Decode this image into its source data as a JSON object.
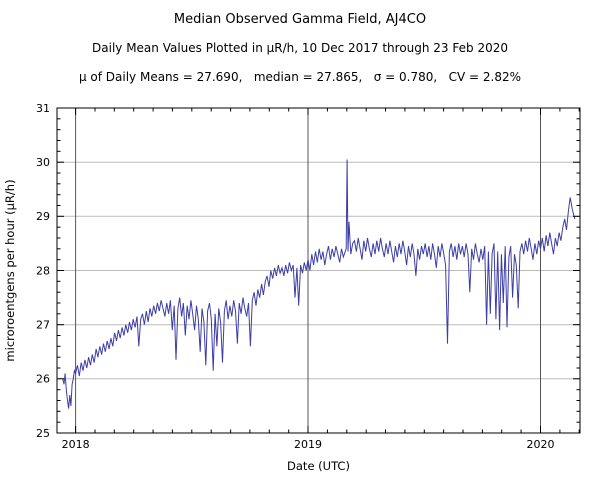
{
  "chart_data": {
    "type": "line",
    "title": "Median Observed Gamma Field, AJ4CO",
    "subtitle": "Daily Mean Values Plotted in μR/h, 10 Dec 2017 through 23 Feb 2020",
    "stats_line": "μ of Daily Means = 27.690,   median = 27.865,   σ = 0.780,   CV = 2.82%",
    "stats": {
      "mean_of_daily_means": 27.69,
      "median": 27.865,
      "sigma": 0.78,
      "cv_percent": 2.82
    },
    "station": "AJ4CO",
    "date_range": {
      "start": "10 Dec 2017",
      "end": "23 Feb 2020"
    },
    "xlabel": "Date (UTC)",
    "ylabel": "microroentgens per hour (μR/h)",
    "xlim": [
      2017.92,
      2020.17
    ],
    "ylim": [
      25,
      31
    ],
    "x_major_ticks": [
      2018,
      2019,
      2020
    ],
    "x_tick_labels": [
      "2018",
      "2019",
      "2020"
    ],
    "y_major_ticks": [
      25,
      26,
      27,
      28,
      29,
      30,
      31
    ],
    "x_minor_step": 0.0833333,
    "y_minor_step": 0.2,
    "grid": {
      "horizontal": true,
      "vertical_years": true,
      "h_color": "#bbbbbb",
      "v_color": "#555555"
    },
    "frame_color": "#000000",
    "line_color": "#3d3da6",
    "series": [
      {
        "name": "daily-mean-gamma",
        "points": [
          [
            2017.945,
            26.0
          ],
          [
            2017.95,
            25.9
          ],
          [
            2017.955,
            26.1
          ],
          [
            2017.96,
            25.8
          ],
          [
            2017.965,
            25.6
          ],
          [
            2017.97,
            25.45
          ],
          [
            2017.975,
            25.7
          ],
          [
            2017.98,
            25.5
          ],
          [
            2017.985,
            25.9
          ],
          [
            2017.99,
            26.0
          ],
          [
            2017.995,
            26.15
          ],
          [
            2018.0,
            26.1
          ],
          [
            2018.008,
            26.25
          ],
          [
            2018.016,
            26.05
          ],
          [
            2018.024,
            26.3
          ],
          [
            2018.032,
            26.15
          ],
          [
            2018.04,
            26.35
          ],
          [
            2018.048,
            26.2
          ],
          [
            2018.056,
            26.4
          ],
          [
            2018.064,
            26.25
          ],
          [
            2018.072,
            26.45
          ],
          [
            2018.08,
            26.3
          ],
          [
            2018.088,
            26.55
          ],
          [
            2018.096,
            26.4
          ],
          [
            2018.104,
            26.6
          ],
          [
            2018.112,
            26.45
          ],
          [
            2018.12,
            26.65
          ],
          [
            2018.128,
            26.5
          ],
          [
            2018.136,
            26.7
          ],
          [
            2018.144,
            26.55
          ],
          [
            2018.152,
            26.75
          ],
          [
            2018.16,
            26.6
          ],
          [
            2018.168,
            26.85
          ],
          [
            2018.176,
            26.7
          ],
          [
            2018.184,
            26.9
          ],
          [
            2018.192,
            26.75
          ],
          [
            2018.2,
            26.95
          ],
          [
            2018.208,
            26.8
          ],
          [
            2018.216,
            27.0
          ],
          [
            2018.224,
            26.85
          ],
          [
            2018.232,
            27.05
          ],
          [
            2018.24,
            26.9
          ],
          [
            2018.248,
            27.1
          ],
          [
            2018.256,
            26.95
          ],
          [
            2018.264,
            27.15
          ],
          [
            2018.272,
            26.6
          ],
          [
            2018.28,
            27.1
          ],
          [
            2018.288,
            27.2
          ],
          [
            2018.296,
            27.0
          ],
          [
            2018.304,
            27.25
          ],
          [
            2018.312,
            27.05
          ],
          [
            2018.32,
            27.3
          ],
          [
            2018.328,
            27.15
          ],
          [
            2018.336,
            27.35
          ],
          [
            2018.344,
            27.2
          ],
          [
            2018.352,
            27.4
          ],
          [
            2018.36,
            27.25
          ],
          [
            2018.368,
            27.45
          ],
          [
            2018.376,
            27.3
          ],
          [
            2018.384,
            27.15
          ],
          [
            2018.392,
            27.4
          ],
          [
            2018.4,
            27.2
          ],
          [
            2018.408,
            27.45
          ],
          [
            2018.416,
            26.9
          ],
          [
            2018.424,
            27.35
          ],
          [
            2018.432,
            26.35
          ],
          [
            2018.44,
            27.3
          ],
          [
            2018.448,
            27.5
          ],
          [
            2018.456,
            27.15
          ],
          [
            2018.464,
            27.4
          ],
          [
            2018.472,
            26.8
          ],
          [
            2018.48,
            27.35
          ],
          [
            2018.488,
            27.1
          ],
          [
            2018.496,
            27.45
          ],
          [
            2018.504,
            27.2
          ],
          [
            2018.512,
            26.9
          ],
          [
            2018.52,
            27.35
          ],
          [
            2018.528,
            27.1
          ],
          [
            2018.536,
            26.5
          ],
          [
            2018.544,
            27.3
          ],
          [
            2018.552,
            27.05
          ],
          [
            2018.56,
            26.25
          ],
          [
            2018.568,
            27.25
          ],
          [
            2018.576,
            27.4
          ],
          [
            2018.584,
            27.1
          ],
          [
            2018.592,
            26.15
          ],
          [
            2018.6,
            27.2
          ],
          [
            2018.608,
            26.6
          ],
          [
            2018.616,
            27.3
          ],
          [
            2018.624,
            27.05
          ],
          [
            2018.632,
            26.3
          ],
          [
            2018.64,
            27.25
          ],
          [
            2018.648,
            27.45
          ],
          [
            2018.656,
            27.1
          ],
          [
            2018.664,
            27.35
          ],
          [
            2018.672,
            27.15
          ],
          [
            2018.68,
            27.45
          ],
          [
            2018.688,
            27.25
          ],
          [
            2018.696,
            26.65
          ],
          [
            2018.704,
            27.4
          ],
          [
            2018.712,
            27.2
          ],
          [
            2018.72,
            27.5
          ],
          [
            2018.728,
            27.3
          ],
          [
            2018.736,
            27.15
          ],
          [
            2018.744,
            27.4
          ],
          [
            2018.752,
            26.6
          ],
          [
            2018.76,
            27.45
          ],
          [
            2018.768,
            27.6
          ],
          [
            2018.776,
            27.35
          ],
          [
            2018.784,
            27.65
          ],
          [
            2018.792,
            27.5
          ],
          [
            2018.8,
            27.75
          ],
          [
            2018.808,
            27.55
          ],
          [
            2018.816,
            27.8
          ],
          [
            2018.824,
            27.9
          ],
          [
            2018.832,
            27.7
          ],
          [
            2018.84,
            28.0
          ],
          [
            2018.848,
            27.85
          ],
          [
            2018.856,
            28.05
          ],
          [
            2018.864,
            27.9
          ],
          [
            2018.872,
            28.1
          ],
          [
            2018.88,
            27.95
          ],
          [
            2018.888,
            28.05
          ],
          [
            2018.896,
            27.9
          ],
          [
            2018.904,
            28.1
          ],
          [
            2018.912,
            27.95
          ],
          [
            2018.92,
            28.15
          ],
          [
            2018.928,
            28.0
          ],
          [
            2018.936,
            28.1
          ],
          [
            2018.944,
            27.5
          ],
          [
            2018.952,
            28.05
          ],
          [
            2018.96,
            27.35
          ],
          [
            2018.968,
            28.1
          ],
          [
            2018.976,
            27.95
          ],
          [
            2018.984,
            28.15
          ],
          [
            2018.992,
            28.0
          ],
          [
            2019.0,
            28.2
          ],
          [
            2019.008,
            28.0
          ],
          [
            2019.016,
            28.3
          ],
          [
            2019.024,
            28.1
          ],
          [
            2019.032,
            28.35
          ],
          [
            2019.04,
            28.15
          ],
          [
            2019.048,
            28.4
          ],
          [
            2019.056,
            28.2
          ],
          [
            2019.064,
            28.35
          ],
          [
            2019.072,
            28.1
          ],
          [
            2019.08,
            28.3
          ],
          [
            2019.088,
            28.45
          ],
          [
            2019.096,
            28.2
          ],
          [
            2019.104,
            28.4
          ],
          [
            2019.112,
            28.25
          ],
          [
            2019.12,
            28.45
          ],
          [
            2019.128,
            28.3
          ],
          [
            2019.136,
            28.15
          ],
          [
            2019.144,
            28.4
          ],
          [
            2019.152,
            28.25
          ],
          [
            2019.16,
            28.35
          ],
          [
            2019.164,
            28.4
          ],
          [
            2019.168,
            30.05
          ],
          [
            2019.172,
            28.35
          ],
          [
            2019.176,
            28.9
          ],
          [
            2019.184,
            28.3
          ],
          [
            2019.192,
            28.5
          ],
          [
            2019.2,
            28.55
          ],
          [
            2019.208,
            28.35
          ],
          [
            2019.216,
            28.6
          ],
          [
            2019.224,
            28.4
          ],
          [
            2019.232,
            28.2
          ],
          [
            2019.24,
            28.55
          ],
          [
            2019.248,
            28.35
          ],
          [
            2019.256,
            28.6
          ],
          [
            2019.264,
            28.4
          ],
          [
            2019.272,
            28.25
          ],
          [
            2019.28,
            28.5
          ],
          [
            2019.288,
            28.3
          ],
          [
            2019.296,
            28.55
          ],
          [
            2019.304,
            28.35
          ],
          [
            2019.312,
            28.6
          ],
          [
            2019.32,
            28.4
          ],
          [
            2019.328,
            28.25
          ],
          [
            2019.336,
            28.5
          ],
          [
            2019.344,
            28.3
          ],
          [
            2019.352,
            28.55
          ],
          [
            2019.36,
            28.35
          ],
          [
            2019.368,
            28.15
          ],
          [
            2019.376,
            28.45
          ],
          [
            2019.384,
            28.25
          ],
          [
            2019.392,
            28.5
          ],
          [
            2019.4,
            28.3
          ],
          [
            2019.408,
            28.55
          ],
          [
            2019.416,
            28.35
          ],
          [
            2019.424,
            28.1
          ],
          [
            2019.432,
            28.45
          ],
          [
            2019.44,
            28.25
          ],
          [
            2019.448,
            28.5
          ],
          [
            2019.456,
            28.3
          ],
          [
            2019.464,
            27.9
          ],
          [
            2019.472,
            28.4
          ],
          [
            2019.48,
            28.2
          ],
          [
            2019.488,
            28.45
          ],
          [
            2019.496,
            28.3
          ],
          [
            2019.504,
            28.5
          ],
          [
            2019.512,
            28.25
          ],
          [
            2019.52,
            28.45
          ],
          [
            2019.528,
            28.2
          ],
          [
            2019.536,
            28.5
          ],
          [
            2019.544,
            28.3
          ],
          [
            2019.552,
            28.05
          ],
          [
            2019.56,
            28.45
          ],
          [
            2019.568,
            28.25
          ],
          [
            2019.576,
            28.5
          ],
          [
            2019.584,
            28.3
          ],
          [
            2019.592,
            28.1
          ],
          [
            2019.6,
            26.65
          ],
          [
            2019.608,
            28.35
          ],
          [
            2019.616,
            28.5
          ],
          [
            2019.624,
            28.25
          ],
          [
            2019.632,
            28.45
          ],
          [
            2019.64,
            28.2
          ],
          [
            2019.648,
            28.5
          ],
          [
            2019.656,
            28.3
          ],
          [
            2019.664,
            28.45
          ],
          [
            2019.672,
            28.25
          ],
          [
            2019.68,
            28.5
          ],
          [
            2019.688,
            28.3
          ],
          [
            2019.696,
            27.6
          ],
          [
            2019.704,
            28.4
          ],
          [
            2019.712,
            28.2
          ],
          [
            2019.72,
            28.5
          ],
          [
            2019.728,
            28.3
          ],
          [
            2019.736,
            28.15
          ],
          [
            2019.744,
            28.4
          ],
          [
            2019.752,
            28.2
          ],
          [
            2019.76,
            28.45
          ],
          [
            2019.768,
            27.0
          ],
          [
            2019.776,
            28.35
          ],
          [
            2019.784,
            27.2
          ],
          [
            2019.792,
            28.3
          ],
          [
            2019.8,
            28.5
          ],
          [
            2019.808,
            27.1
          ],
          [
            2019.816,
            28.35
          ],
          [
            2019.824,
            26.9
          ],
          [
            2019.832,
            28.3
          ],
          [
            2019.84,
            27.4
          ],
          [
            2019.848,
            28.45
          ],
          [
            2019.856,
            26.95
          ],
          [
            2019.864,
            28.25
          ],
          [
            2019.872,
            28.45
          ],
          [
            2019.88,
            27.5
          ],
          [
            2019.888,
            28.3
          ],
          [
            2019.896,
            28.1
          ],
          [
            2019.904,
            27.3
          ],
          [
            2019.912,
            28.35
          ],
          [
            2019.92,
            28.5
          ],
          [
            2019.928,
            28.3
          ],
          [
            2019.936,
            28.55
          ],
          [
            2019.944,
            28.35
          ],
          [
            2019.952,
            28.6
          ],
          [
            2019.96,
            28.4
          ],
          [
            2019.968,
            28.2
          ],
          [
            2019.976,
            28.5
          ],
          [
            2019.984,
            28.3
          ],
          [
            2019.992,
            28.55
          ],
          [
            2020.0,
            28.4
          ],
          [
            2020.008,
            28.6
          ],
          [
            2020.016,
            28.35
          ],
          [
            2020.024,
            28.65
          ],
          [
            2020.032,
            28.45
          ],
          [
            2020.04,
            28.7
          ],
          [
            2020.048,
            28.5
          ],
          [
            2020.056,
            28.3
          ],
          [
            2020.064,
            28.6
          ],
          [
            2020.072,
            28.45
          ],
          [
            2020.08,
            28.7
          ],
          [
            2020.088,
            28.55
          ],
          [
            2020.096,
            28.8
          ],
          [
            2020.104,
            28.95
          ],
          [
            2020.112,
            28.75
          ],
          [
            2020.12,
            29.1
          ],
          [
            2020.128,
            29.35
          ],
          [
            2020.136,
            29.15
          ],
          [
            2020.144,
            29.0
          ],
          [
            2020.148,
            28.95
          ]
        ]
      }
    ]
  }
}
